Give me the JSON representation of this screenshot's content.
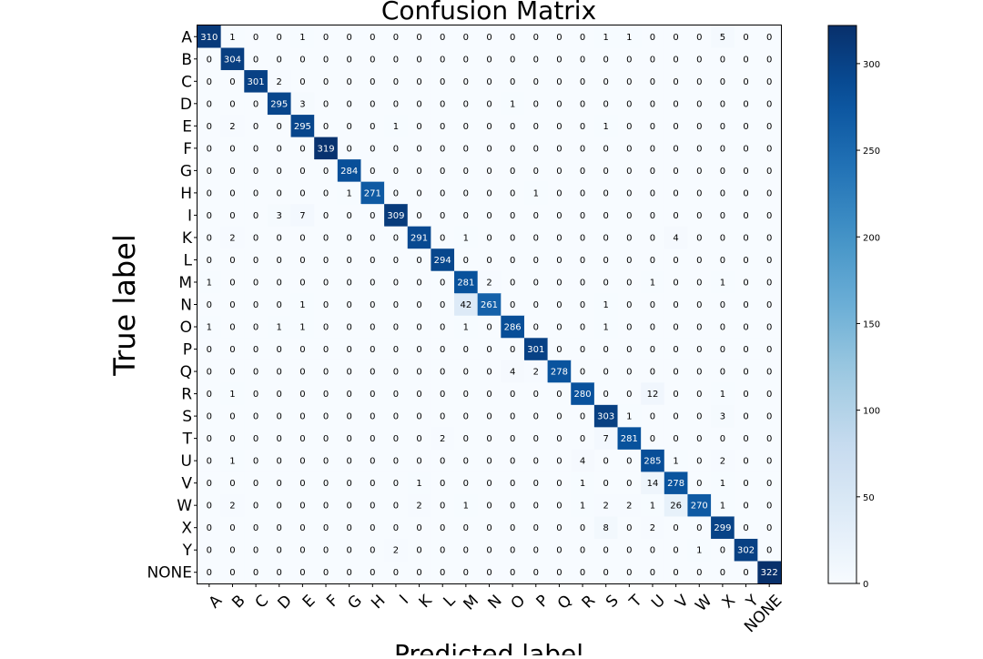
{
  "chart_data": {
    "type": "heatmap",
    "title": "Confusion Matrix",
    "xlabel": "Predicted label",
    "ylabel": "True label",
    "labels": [
      "A",
      "B",
      "C",
      "D",
      "E",
      "F",
      "G",
      "H",
      "I",
      "K",
      "L",
      "M",
      "N",
      "O",
      "P",
      "Q",
      "R",
      "S",
      "T",
      "U",
      "V",
      "W",
      "X",
      "Y",
      "NONE"
    ],
    "colorbar": {
      "ticks": [
        0,
        50,
        100,
        150,
        200,
        250,
        300
      ],
      "range": [
        0,
        322
      ],
      "colormap": "Blues"
    },
    "matrix": [
      [
        310,
        1,
        0,
        0,
        1,
        0,
        0,
        0,
        0,
        0,
        0,
        0,
        0,
        0,
        0,
        0,
        0,
        1,
        1,
        0,
        0,
        0,
        5,
        0,
        0
      ],
      [
        0,
        304,
        0,
        0,
        0,
        0,
        0,
        0,
        0,
        0,
        0,
        0,
        0,
        0,
        0,
        0,
        0,
        0,
        0,
        0,
        0,
        0,
        0,
        0,
        0
      ],
      [
        0,
        0,
        301,
        2,
        0,
        0,
        0,
        0,
        0,
        0,
        0,
        0,
        0,
        0,
        0,
        0,
        0,
        0,
        0,
        0,
        0,
        0,
        0,
        0,
        0
      ],
      [
        0,
        0,
        0,
        295,
        3,
        0,
        0,
        0,
        0,
        0,
        0,
        0,
        0,
        1,
        0,
        0,
        0,
        0,
        0,
        0,
        0,
        0,
        0,
        0,
        0
      ],
      [
        0,
        2,
        0,
        0,
        295,
        0,
        0,
        0,
        1,
        0,
        0,
        0,
        0,
        0,
        0,
        0,
        0,
        1,
        0,
        0,
        0,
        0,
        0,
        0,
        0
      ],
      [
        0,
        0,
        0,
        0,
        0,
        319,
        0,
        0,
        0,
        0,
        0,
        0,
        0,
        0,
        0,
        0,
        0,
        0,
        0,
        0,
        0,
        0,
        0,
        0,
        0
      ],
      [
        0,
        0,
        0,
        0,
        0,
        0,
        284,
        0,
        0,
        0,
        0,
        0,
        0,
        0,
        0,
        0,
        0,
        0,
        0,
        0,
        0,
        0,
        0,
        0,
        0
      ],
      [
        0,
        0,
        0,
        0,
        0,
        0,
        1,
        271,
        0,
        0,
        0,
        0,
        0,
        0,
        1,
        0,
        0,
        0,
        0,
        0,
        0,
        0,
        0,
        0,
        0
      ],
      [
        0,
        0,
        0,
        3,
        7,
        0,
        0,
        0,
        309,
        0,
        0,
        0,
        0,
        0,
        0,
        0,
        0,
        0,
        0,
        0,
        0,
        0,
        0,
        0,
        0
      ],
      [
        0,
        2,
        0,
        0,
        0,
        0,
        0,
        0,
        0,
        291,
        0,
        1,
        0,
        0,
        0,
        0,
        0,
        0,
        0,
        0,
        4,
        0,
        0,
        0,
        0
      ],
      [
        0,
        0,
        0,
        0,
        0,
        0,
        0,
        0,
        0,
        0,
        294,
        0,
        0,
        0,
        0,
        0,
        0,
        0,
        0,
        0,
        0,
        0,
        0,
        0,
        0
      ],
      [
        1,
        0,
        0,
        0,
        0,
        0,
        0,
        0,
        0,
        0,
        0,
        281,
        2,
        0,
        0,
        0,
        0,
        0,
        0,
        1,
        0,
        0,
        1,
        0,
        0
      ],
      [
        0,
        0,
        0,
        0,
        1,
        0,
        0,
        0,
        0,
        0,
        0,
        42,
        261,
        0,
        0,
        0,
        0,
        1,
        0,
        0,
        0,
        0,
        0,
        0,
        0
      ],
      [
        1,
        0,
        0,
        1,
        1,
        0,
        0,
        0,
        0,
        0,
        0,
        1,
        0,
        286,
        0,
        0,
        0,
        1,
        0,
        0,
        0,
        0,
        0,
        0,
        0
      ],
      [
        0,
        0,
        0,
        0,
        0,
        0,
        0,
        0,
        0,
        0,
        0,
        0,
        0,
        0,
        301,
        0,
        0,
        0,
        0,
        0,
        0,
        0,
        0,
        0,
        0
      ],
      [
        0,
        0,
        0,
        0,
        0,
        0,
        0,
        0,
        0,
        0,
        0,
        0,
        0,
        4,
        2,
        278,
        0,
        0,
        0,
        0,
        0,
        0,
        0,
        0,
        0
      ],
      [
        0,
        1,
        0,
        0,
        0,
        0,
        0,
        0,
        0,
        0,
        0,
        0,
        0,
        0,
        0,
        0,
        280,
        0,
        0,
        12,
        0,
        0,
        1,
        0,
        0
      ],
      [
        0,
        0,
        0,
        0,
        0,
        0,
        0,
        0,
        0,
        0,
        0,
        0,
        0,
        0,
        0,
        0,
        0,
        303,
        1,
        0,
        0,
        0,
        3,
        0,
        0
      ],
      [
        0,
        0,
        0,
        0,
        0,
        0,
        0,
        0,
        0,
        0,
        2,
        0,
        0,
        0,
        0,
        0,
        0,
        7,
        281,
        0,
        0,
        0,
        0,
        0,
        0
      ],
      [
        0,
        1,
        0,
        0,
        0,
        0,
        0,
        0,
        0,
        0,
        0,
        0,
        0,
        0,
        0,
        0,
        4,
        0,
        0,
        285,
        1,
        0,
        2,
        0,
        0
      ],
      [
        0,
        0,
        0,
        0,
        0,
        0,
        0,
        0,
        0,
        1,
        0,
        0,
        0,
        0,
        0,
        0,
        1,
        0,
        0,
        14,
        278,
        0,
        1,
        0,
        0
      ],
      [
        0,
        2,
        0,
        0,
        0,
        0,
        0,
        0,
        0,
        2,
        0,
        1,
        0,
        0,
        0,
        0,
        1,
        2,
        2,
        1,
        26,
        270,
        1,
        0,
        0
      ],
      [
        0,
        0,
        0,
        0,
        0,
        0,
        0,
        0,
        0,
        0,
        0,
        0,
        0,
        0,
        0,
        0,
        0,
        8,
        0,
        2,
        0,
        0,
        299,
        0,
        0
      ],
      [
        0,
        0,
        0,
        0,
        0,
        0,
        0,
        0,
        2,
        0,
        0,
        0,
        0,
        0,
        0,
        0,
        0,
        0,
        0,
        0,
        0,
        1,
        0,
        302,
        0
      ],
      [
        0,
        0,
        0,
        0,
        0,
        0,
        0,
        0,
        0,
        0,
        0,
        0,
        0,
        0,
        0,
        0,
        0,
        0,
        0,
        0,
        0,
        0,
        0,
        0,
        322
      ]
    ]
  }
}
